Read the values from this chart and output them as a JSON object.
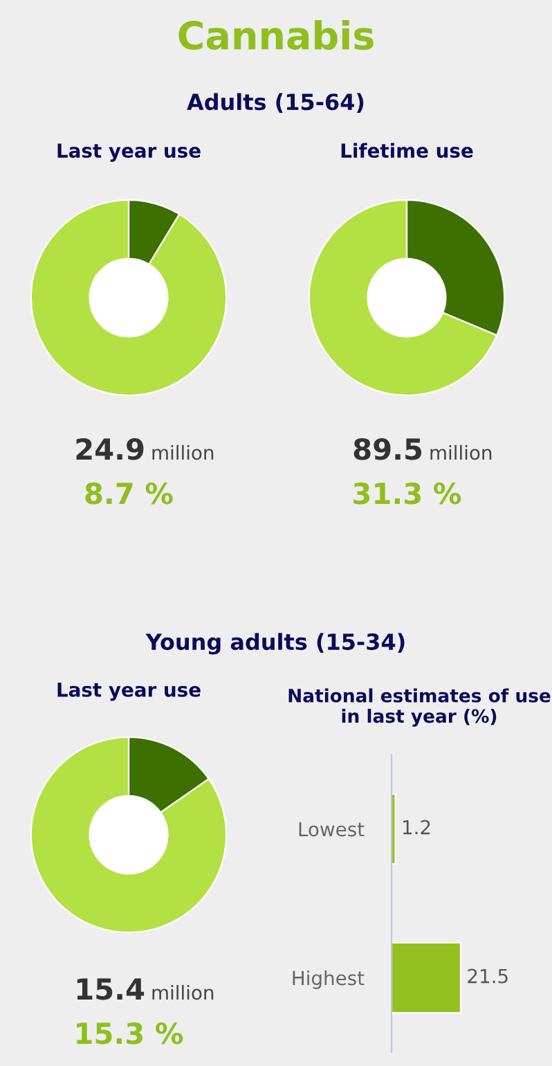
{
  "chart_data": [
    {
      "type": "donut",
      "title": "Last year use",
      "categories": [
        null,
        null
      ],
      "values": [
        8.7,
        91.3
      ],
      "colors": [
        "#3d7000",
        "#b3e043"
      ],
      "annotations": [
        "Cannabis",
        "Adults (15-64)",
        "24.9",
        "million",
        "8.7 %"
      ]
    },
    {
      "type": "donut",
      "title": "Lifetime use",
      "categories": [
        null,
        null
      ],
      "values": [
        31.3,
        68.7
      ],
      "colors": [
        "#3d7000",
        "#b3e043"
      ],
      "annotations": [
        "89.5",
        "million",
        "31.3 %"
      ]
    },
    {
      "type": "donut",
      "title": "Last year use",
      "categories": [
        null,
        null
      ],
      "values": [
        15.3,
        84.7
      ],
      "colors": [
        "#3d7000",
        "#b3e043"
      ],
      "annotations": [
        "Young adults (15-34)",
        "15.4",
        "million",
        "15.3 %"
      ]
    },
    {
      "type": "bar",
      "orientation": "horizontal",
      "title": "National estimates of use in last year (%)",
      "categories": [
        "Lowest",
        "Highest"
      ],
      "values": [
        1.2,
        21.5
      ],
      "color": "#93c01f",
      "data_labels": true,
      "tick_labels": "y",
      "grid": false,
      "legend": false
    }
  ]
}
